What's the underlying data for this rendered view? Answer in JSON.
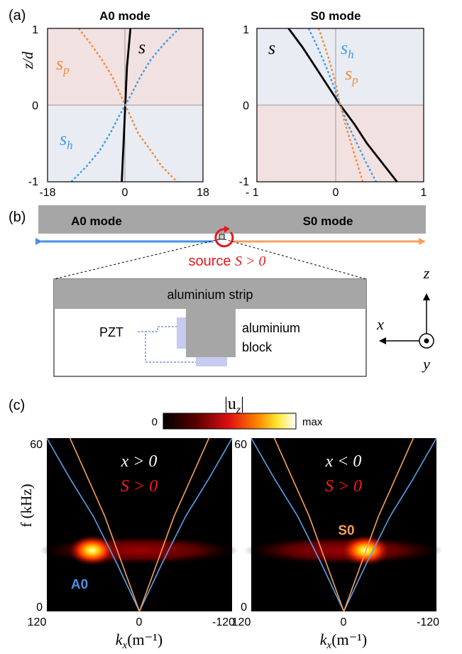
{
  "panel_a": {
    "label": "(a)",
    "left": {
      "title": "A0 mode",
      "ylabel": "z/d",
      "yticks": [
        "1",
        "0",
        "-1"
      ],
      "xticks": [
        "-18",
        "0",
        "18"
      ],
      "curve_labels": {
        "s": "s",
        "sp": "s",
        "sp_sub": "p",
        "sh": "s",
        "sh_sub": "h"
      }
    },
    "right": {
      "title": "S0 mode",
      "yticks": [
        "1",
        "0",
        "-1"
      ],
      "xticks": [
        "- 1",
        "0",
        "1"
      ],
      "curve_labels": {
        "s": "s",
        "sp": "s",
        "sp_sub": "p",
        "sh": "s",
        "sh_sub": "h"
      }
    }
  },
  "panel_b": {
    "label": "(b)",
    "left_mode": "A0 mode",
    "right_mode": "S0 mode",
    "source_label": "source ",
    "source_math": "S > 0",
    "strip_label": "aluminium strip",
    "pzt_label": "PZT",
    "block_label_1": "aluminium",
    "block_label_2": "block",
    "axes": {
      "z": "z",
      "x": "x",
      "y": "y"
    }
  },
  "panel_c": {
    "label": "(c)",
    "colorbar": {
      "title": "|u",
      "title_sub": "z",
      "title_end": "|",
      "min": "0",
      "max": "max"
    },
    "left": {
      "cond1": "x > 0",
      "cond2": "S > 0",
      "mode_label": "A0",
      "yticks": [
        "60",
        "0"
      ],
      "xticks": [
        "120",
        "0",
        "-120"
      ]
    },
    "right": {
      "cond1": "x < 0",
      "cond2": "S > 0",
      "mode_label": "S0",
      "yticks": [
        "60",
        "0"
      ],
      "xticks": [
        "120",
        "0",
        "-120"
      ]
    },
    "ylabel": "f (kHz)",
    "xlabel": "k",
    "xlabel_sub": "x",
    "xlabel_unit": "(m⁻¹)"
  },
  "colors": {
    "red_region": "#f2e1e1",
    "blue_region": "#e9ecf3",
    "sp": "#f08a3c",
    "sh": "#3a9ce8",
    "s": "#000000",
    "strip": "#a6a6a6",
    "a0_arrow": "#4a90e2",
    "s0_arrow": "#f5a05a",
    "source_red": "#e8161b"
  },
  "chart_data": [
    {
      "type": "line",
      "title": "A0 mode",
      "ylabel": "z/d",
      "xlim": [
        -18,
        18
      ],
      "ylim": [
        -1,
        1
      ],
      "series": [
        {
          "name": "s",
          "x": [
            -0.8,
            -0.6,
            -0.4,
            -0.2,
            0,
            0.2,
            0.4,
            0.8,
            1.2
          ],
          "y": [
            -1,
            -0.75,
            -0.5,
            -0.25,
            0,
            0.25,
            0.5,
            0.75,
            1
          ]
        },
        {
          "name": "sp",
          "x": [
            -10.8,
            -8,
            -5.5,
            -3,
            -1,
            0,
            1,
            3,
            6,
            8.5,
            12
          ],
          "y": [
            1,
            0.8,
            0.6,
            0.37,
            0.12,
            0,
            -0.12,
            -0.37,
            -0.6,
            -0.8,
            -1
          ]
        },
        {
          "name": "sh",
          "x": [
            -12.5,
            -9,
            -6,
            -3.5,
            -1.5,
            0,
            1.5,
            3.5,
            6,
            9,
            12.5
          ],
          "y": [
            -1,
            -0.8,
            -0.6,
            -0.37,
            -0.15,
            0,
            0.15,
            0.37,
            0.6,
            0.8,
            1
          ]
        }
      ]
    },
    {
      "type": "line",
      "title": "S0 mode",
      "xlim": [
        -1,
        1
      ],
      "ylim": [
        -1,
        1
      ],
      "series": [
        {
          "name": "s",
          "x": [
            -0.62,
            -0.45,
            -0.3,
            -0.15,
            0,
            0.17,
            0.32,
            0.5,
            0.68
          ],
          "y": [
            1,
            0.75,
            0.5,
            0.25,
            0,
            -0.25,
            -0.5,
            -0.75,
            -1
          ]
        },
        {
          "name": "sh",
          "x": [
            -0.38,
            -0.27,
            -0.17,
            -0.08,
            0,
            0.09,
            0.2,
            0.31,
            0.43
          ],
          "y": [
            1,
            0.75,
            0.5,
            0.25,
            0,
            -0.25,
            -0.5,
            -0.75,
            -1
          ]
        },
        {
          "name": "sp",
          "x": [
            -0.26,
            -0.18,
            -0.11,
            -0.05,
            0,
            0.06,
            0.13,
            0.2,
            0.27
          ],
          "y": [
            1,
            0.75,
            0.5,
            0.25,
            0,
            -0.25,
            -0.5,
            -0.75,
            -1
          ]
        }
      ]
    },
    {
      "type": "heatmap",
      "title": "x > 0, S > 0",
      "xlabel": "k_x (m⁻¹)",
      "ylabel": "f (kHz)",
      "xlim": [
        120,
        -120
      ],
      "ylim": [
        0,
        60
      ],
      "series": [
        {
          "name": "A0",
          "x": [
            120,
            90,
            60,
            30,
            0,
            -30,
            -60,
            -90,
            -120
          ],
          "y": [
            60,
            46,
            33,
            17,
            0,
            17,
            33,
            46,
            60
          ]
        },
        {
          "name": "S0",
          "x": [
            90,
            60,
            45,
            30,
            0,
            -30,
            -45,
            -60,
            -90
          ],
          "y": [
            60,
            42,
            33,
            22,
            0,
            22,
            33,
            42,
            60
          ]
        }
      ],
      "hotspot": {
        "k": 55,
        "f": 24
      }
    },
    {
      "type": "heatmap",
      "title": "x < 0, S > 0",
      "xlabel": "k_x (m⁻¹)",
      "xlim": [
        120,
        -120
      ],
      "ylim": [
        0,
        60
      ],
      "series": [
        {
          "name": "A0",
          "x": [
            120,
            90,
            60,
            30,
            0,
            -30,
            -60,
            -90,
            -120
          ],
          "y": [
            60,
            46,
            33,
            17,
            0,
            17,
            33,
            46,
            60
          ]
        },
        {
          "name": "S0",
          "x": [
            90,
            60,
            45,
            30,
            0,
            -30,
            -45,
            -60,
            -90
          ],
          "y": [
            60,
            42,
            33,
            22,
            0,
            22,
            33,
            42,
            60
          ]
        }
      ],
      "hotspot": {
        "k": -30,
        "f": 24
      }
    }
  ]
}
